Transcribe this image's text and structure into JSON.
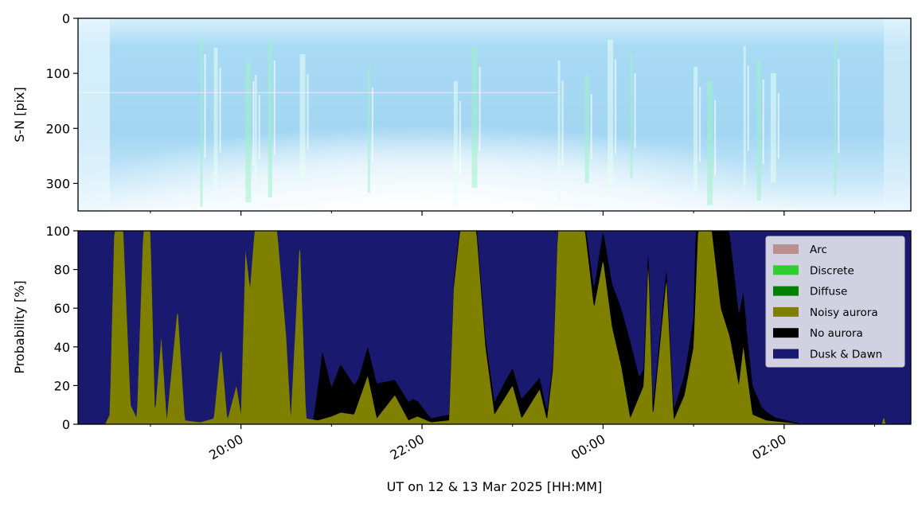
{
  "chart_data": [
    {
      "type": "heatmap",
      "description_kind": "keogram",
      "ylabel": "S-N [pix]",
      "ylim": [
        0,
        350
      ],
      "y_inverted": true,
      "yticks": [
        0,
        100,
        200,
        300
      ],
      "xlim_hours": [
        18.2,
        27.4
      ],
      "bright_streaks_hours": [
        19.55,
        19.7,
        20.05,
        20.15,
        20.3,
        20.65,
        21.4,
        22.35,
        22.55,
        23.5,
        23.8,
        24.05,
        24.3,
        25.0,
        25.15,
        25.55,
        25.7,
        25.85,
        26.55
      ]
    },
    {
      "type": "area",
      "stacked": true,
      "ylabel": "Probability [%]",
      "xlabel": "UT on 12 & 13 Mar 2025 [HH:MM]",
      "ylim": [
        0,
        100
      ],
      "yticks": [
        0,
        20,
        40,
        60,
        80,
        100
      ],
      "xlim_hours": [
        18.2,
        27.4
      ],
      "xtick_hours": [
        20,
        22,
        24,
        26
      ],
      "xtick_labels": [
        "20:00",
        "22:00",
        "00:00",
        "02:00"
      ],
      "minor_xtick_hours": [
        19,
        21,
        23,
        25,
        27
      ],
      "grid": false,
      "legend_position": "top-right",
      "series_colors": {
        "Arc": "#bc8f8f",
        "Discrete": "#32cd32",
        "Diffuse": "#008000",
        "Noisy aurora": "#808000",
        "No aurora": "#000000",
        "Dusk & Dawn": "#191970"
      },
      "legend": [
        "Arc",
        "Discrete",
        "Diffuse",
        "Noisy aurora",
        "No aurora",
        "Dusk & Dawn"
      ],
      "noisy_aurora_peaks": [
        {
          "t": 18.5,
          "p": 0
        },
        {
          "t": 18.55,
          "p": 5
        },
        {
          "t": 18.6,
          "p": 100
        },
        {
          "t": 18.7,
          "p": 100
        },
        {
          "t": 18.78,
          "p": 10
        },
        {
          "t": 18.85,
          "p": 3
        },
        {
          "t": 18.92,
          "p": 100
        },
        {
          "t": 19.0,
          "p": 100
        },
        {
          "t": 19.05,
          "p": 5
        },
        {
          "t": 19.12,
          "p": 45
        },
        {
          "t": 19.18,
          "p": 2
        },
        {
          "t": 19.3,
          "p": 60
        },
        {
          "t": 19.38,
          "p": 2
        },
        {
          "t": 19.55,
          "p": 1
        },
        {
          "t": 19.7,
          "p": 3
        },
        {
          "t": 19.78,
          "p": 40
        },
        {
          "t": 19.85,
          "p": 2
        },
        {
          "t": 19.95,
          "p": 20
        },
        {
          "t": 20.0,
          "p": 5
        },
        {
          "t": 20.05,
          "p": 90
        },
        {
          "t": 20.1,
          "p": 70
        },
        {
          "t": 20.15,
          "p": 100
        },
        {
          "t": 20.4,
          "p": 100
        },
        {
          "t": 20.5,
          "p": 45
        },
        {
          "t": 20.55,
          "p": 3
        },
        {
          "t": 20.65,
          "p": 95
        },
        {
          "t": 20.72,
          "p": 3
        },
        {
          "t": 20.85,
          "p": 2
        },
        {
          "t": 21.0,
          "p": 4
        },
        {
          "t": 21.1,
          "p": 6
        },
        {
          "t": 21.25,
          "p": 5
        },
        {
          "t": 21.4,
          "p": 25
        },
        {
          "t": 21.5,
          "p": 3
        },
        {
          "t": 21.7,
          "p": 15
        },
        {
          "t": 21.85,
          "p": 2
        },
        {
          "t": 21.95,
          "p": 4
        },
        {
          "t": 22.1,
          "p": 1
        },
        {
          "t": 22.3,
          "p": 2
        },
        {
          "t": 22.35,
          "p": 70
        },
        {
          "t": 22.42,
          "p": 100
        },
        {
          "t": 22.6,
          "p": 100
        },
        {
          "t": 22.7,
          "p": 40
        },
        {
          "t": 22.8,
          "p": 5
        },
        {
          "t": 23.0,
          "p": 20
        },
        {
          "t": 23.1,
          "p": 3
        },
        {
          "t": 23.3,
          "p": 18
        },
        {
          "t": 23.38,
          "p": 2
        },
        {
          "t": 23.45,
          "p": 30
        },
        {
          "t": 23.5,
          "p": 100
        },
        {
          "t": 23.8,
          "p": 100
        },
        {
          "t": 23.9,
          "p": 60
        },
        {
          "t": 24.0,
          "p": 85
        },
        {
          "t": 24.1,
          "p": 50
        },
        {
          "t": 24.2,
          "p": 30
        },
        {
          "t": 24.3,
          "p": 3
        },
        {
          "t": 24.45,
          "p": 20
        },
        {
          "t": 24.5,
          "p": 85
        },
        {
          "t": 24.55,
          "p": 3
        },
        {
          "t": 24.7,
          "p": 75
        },
        {
          "t": 24.78,
          "p": 2
        },
        {
          "t": 24.9,
          "p": 15
        },
        {
          "t": 25.0,
          "p": 40
        },
        {
          "t": 25.05,
          "p": 100
        },
        {
          "t": 25.2,
          "p": 100
        },
        {
          "t": 25.3,
          "p": 60
        },
        {
          "t": 25.4,
          "p": 45
        },
        {
          "t": 25.5,
          "p": 20
        },
        {
          "t": 25.55,
          "p": 40
        },
        {
          "t": 25.65,
          "p": 5
        },
        {
          "t": 25.8,
          "p": 2
        },
        {
          "t": 26.0,
          "p": 1
        },
        {
          "t": 26.2,
          "p": 0
        },
        {
          "t": 27.08,
          "p": 0
        },
        {
          "t": 27.1,
          "p": 4
        },
        {
          "t": 27.12,
          "p": 0
        },
        {
          "t": 27.4,
          "p": 0
        }
      ],
      "no_aurora_peaks": [
        {
          "t": 18.5,
          "p": 0
        },
        {
          "t": 20.8,
          "p": 0
        },
        {
          "t": 20.9,
          "p": 35
        },
        {
          "t": 21.0,
          "p": 15
        },
        {
          "t": 21.1,
          "p": 25
        },
        {
          "t": 21.3,
          "p": 12
        },
        {
          "t": 21.5,
          "p": 18
        },
        {
          "t": 21.7,
          "p": 8
        },
        {
          "t": 21.9,
          "p": 10
        },
        {
          "t": 22.1,
          "p": 2
        },
        {
          "t": 22.3,
          "p": 3
        },
        {
          "t": 22.7,
          "p": 5
        },
        {
          "t": 22.9,
          "p": 8
        },
        {
          "t": 23.1,
          "p": 10
        },
        {
          "t": 23.3,
          "p": 6
        },
        {
          "t": 23.5,
          "p": 3
        },
        {
          "t": 23.8,
          "p": 5
        },
        {
          "t": 24.0,
          "p": 15
        },
        {
          "t": 24.2,
          "p": 30
        },
        {
          "t": 24.3,
          "p": 40
        },
        {
          "t": 24.4,
          "p": 10
        },
        {
          "t": 24.6,
          "p": 5
        },
        {
          "t": 24.8,
          "p": 6
        },
        {
          "t": 25.0,
          "p": 15
        },
        {
          "t": 25.1,
          "p": 100
        },
        {
          "t": 25.25,
          "p": 90
        },
        {
          "t": 25.35,
          "p": 60
        },
        {
          "t": 25.45,
          "p": 45
        },
        {
          "t": 25.6,
          "p": 20
        },
        {
          "t": 25.75,
          "p": 6
        },
        {
          "t": 25.9,
          "p": 2
        },
        {
          "t": 26.2,
          "p": 0
        },
        {
          "t": 27.4,
          "p": 0
        }
      ]
    }
  ]
}
